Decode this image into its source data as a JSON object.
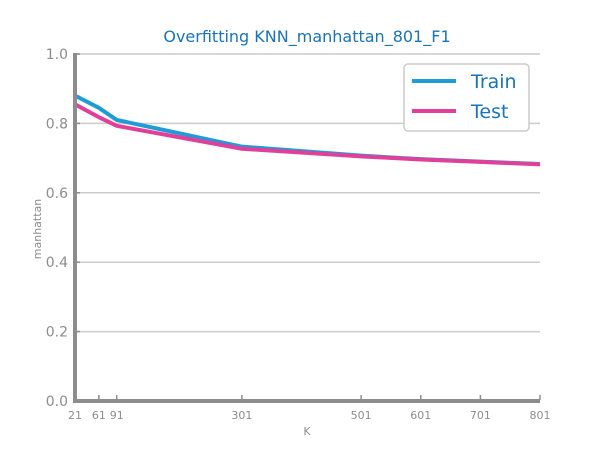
{
  "chart_data": {
    "type": "line",
    "title": "Overfitting KNN_manhattan_801_F1",
    "xlabel": "K",
    "ylabel": "manhattan",
    "x": [
      21,
      61,
      91,
      301,
      501,
      601,
      701,
      801
    ],
    "x_ticks": [
      21,
      61,
      91,
      301,
      501,
      601,
      701,
      801
    ],
    "y_ticks": [
      "0.0",
      "0.2",
      "0.4",
      "0.6",
      "0.8",
      "1.0"
    ],
    "xlim": [
      21,
      801
    ],
    "ylim": [
      0,
      1
    ],
    "grid": "horizontal",
    "legend_position": "top-right",
    "series": [
      {
        "name": "Train",
        "color": "#1f9bd6",
        "values": [
          0.88,
          0.845,
          0.81,
          0.733,
          0.707,
          0.697,
          0.69,
          0.683
        ]
      },
      {
        "name": "Test",
        "color": "#e0409a",
        "values": [
          0.855,
          0.818,
          0.793,
          0.727,
          0.705,
          0.696,
          0.689,
          0.682
        ]
      }
    ],
    "colors": {
      "title": "#1a73b5",
      "axis": "#8c8c8c",
      "grid": "#cccccc",
      "legend_text": "#1a73b5"
    }
  }
}
